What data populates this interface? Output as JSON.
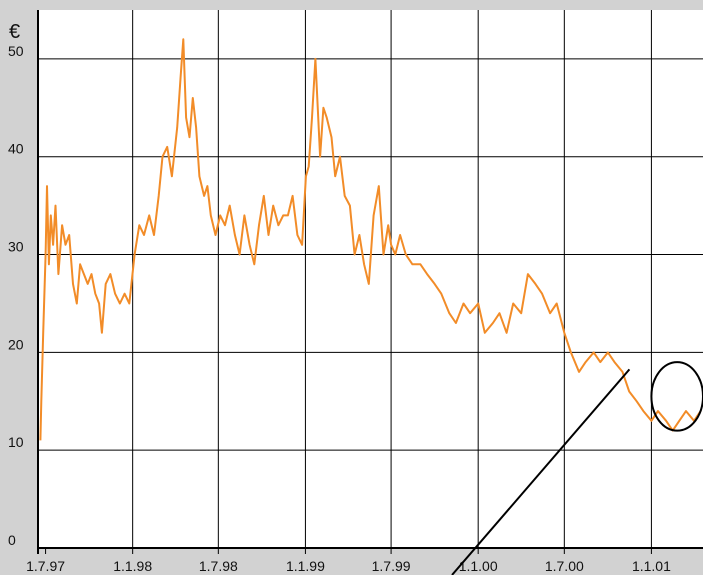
{
  "chart_data": {
    "type": "line",
    "title": "",
    "xlabel": "",
    "ylabel": "€",
    "ylim": [
      0,
      55
    ],
    "yticks": [
      0,
      10,
      20,
      30,
      40,
      50
    ],
    "xticks": [
      "1.7.97",
      "1.1.98",
      "1.7.98",
      "1.1.99",
      "1.7.99",
      "1.1.00",
      "1.7.00",
      "1.1.01"
    ],
    "xlim": [
      "1997-06-15",
      "2001-04-20"
    ],
    "grid": true,
    "legend": "none",
    "line_color": "#f28c28",
    "series": [
      {
        "x": [
          "1997-06-20",
          "1997-06-22",
          "1997-06-26",
          "1997-07-01",
          "1997-07-04",
          "1997-07-08",
          "1997-07-12",
          "1997-07-17",
          "1997-07-22",
          "1997-07-28",
          "1997-08-05",
          "1997-08-12",
          "1997-08-20",
          "1997-08-28",
          "1997-09-05",
          "1997-09-12",
          "1997-09-20",
          "1997-09-28",
          "1997-10-06",
          "1997-10-14",
          "1997-10-22",
          "1997-10-28",
          "1997-11-05",
          "1997-11-15",
          "1997-11-25",
          "1997-12-05",
          "1997-12-15",
          "1997-12-25",
          "1998-01-05",
          "1998-01-15",
          "1998-01-25",
          "1998-02-05",
          "1998-02-15",
          "1998-02-25",
          "1998-03-05",
          "1998-03-15",
          "1998-03-25",
          "1998-04-05",
          "1998-04-12",
          "1998-04-18",
          "1998-04-24",
          "1998-05-01",
          "1998-05-08",
          "1998-05-15",
          "1998-05-22",
          "1998-06-01",
          "1998-06-08",
          "1998-06-15",
          "1998-06-25",
          "1998-07-05",
          "1998-07-15",
          "1998-07-25",
          "1998-08-05",
          "1998-08-15",
          "1998-08-25",
          "1998-09-05",
          "1998-09-15",
          "1998-09-25",
          "1998-10-05",
          "1998-10-15",
          "1998-10-25",
          "1998-11-05",
          "1998-11-15",
          "1998-11-25",
          "1998-12-05",
          "1998-12-15",
          "1998-12-25",
          "1999-01-02",
          "1999-01-08",
          "1999-01-15",
          "1999-01-22",
          "1999-02-01",
          "1999-02-08",
          "1999-02-15",
          "1999-02-25",
          "1999-03-05",
          "1999-03-15",
          "1999-03-25",
          "1999-04-05",
          "1999-04-15",
          "1999-04-25",
          "1999-05-05",
          "1999-05-15",
          "1999-05-25",
          "1999-06-05",
          "1999-06-15",
          "1999-06-25",
          "1999-07-01",
          "1999-07-10",
          "1999-07-20",
          "1999-08-01",
          "1999-08-15",
          "1999-09-01",
          "1999-09-15",
          "1999-10-01",
          "1999-10-15",
          "1999-11-01",
          "1999-11-15",
          "1999-12-01",
          "1999-12-15",
          "2000-01-01",
          "2000-01-15",
          "2000-02-01",
          "2000-02-15",
          "2000-03-01",
          "2000-03-15",
          "2000-04-01",
          "2000-04-15",
          "2000-05-01",
          "2000-05-15",
          "2000-06-01",
          "2000-06-15",
          "2000-07-01",
          "2000-07-15",
          "2000-08-01",
          "2000-08-15",
          "2000-09-01",
          "2000-09-15",
          "2000-10-01",
          "2000-10-15",
          "2000-11-01",
          "2000-11-15",
          "2000-12-01",
          "2000-12-15",
          "2001-01-01",
          "2001-01-15",
          "2001-02-01",
          "2001-02-15",
          "2001-03-01",
          "2001-03-15",
          "2001-04-01",
          "2001-04-15"
        ],
        "y": [
          11,
          15,
          22,
          30,
          37,
          29,
          34,
          31,
          35,
          28,
          33,
          31,
          32,
          27,
          25,
          29,
          28,
          27,
          28,
          26,
          25,
          22,
          27,
          28,
          26,
          25,
          26,
          25,
          30,
          33,
          32,
          34,
          32,
          36,
          40,
          41,
          38,
          43,
          48,
          52,
          44,
          42,
          46,
          43,
          38,
          36,
          37,
          34,
          32,
          34,
          33,
          35,
          32,
          30,
          34,
          31,
          29,
          33,
          36,
          32,
          35,
          33,
          34,
          34,
          36,
          32,
          31,
          38,
          39,
          44,
          50,
          40,
          45,
          44,
          42,
          38,
          40,
          36,
          35,
          30,
          32,
          29,
          27,
          34,
          37,
          30,
          33,
          31,
          30,
          32,
          30,
          29,
          29,
          28,
          27,
          26,
          24,
          23,
          25,
          24,
          25,
          22,
          23,
          24,
          22,
          25,
          24,
          28,
          27,
          26,
          24,
          25,
          22,
          20,
          18,
          19,
          20,
          19,
          20,
          19,
          18,
          16,
          15,
          14,
          13,
          14,
          13,
          12,
          13,
          14,
          13,
          14
        ]
      }
    ],
    "annotations": [
      {
        "type": "ellipse",
        "start": "2001-01-01",
        "end": "2001-04-20",
        "y_low": 12,
        "y_high": 19
      }
    ]
  }
}
